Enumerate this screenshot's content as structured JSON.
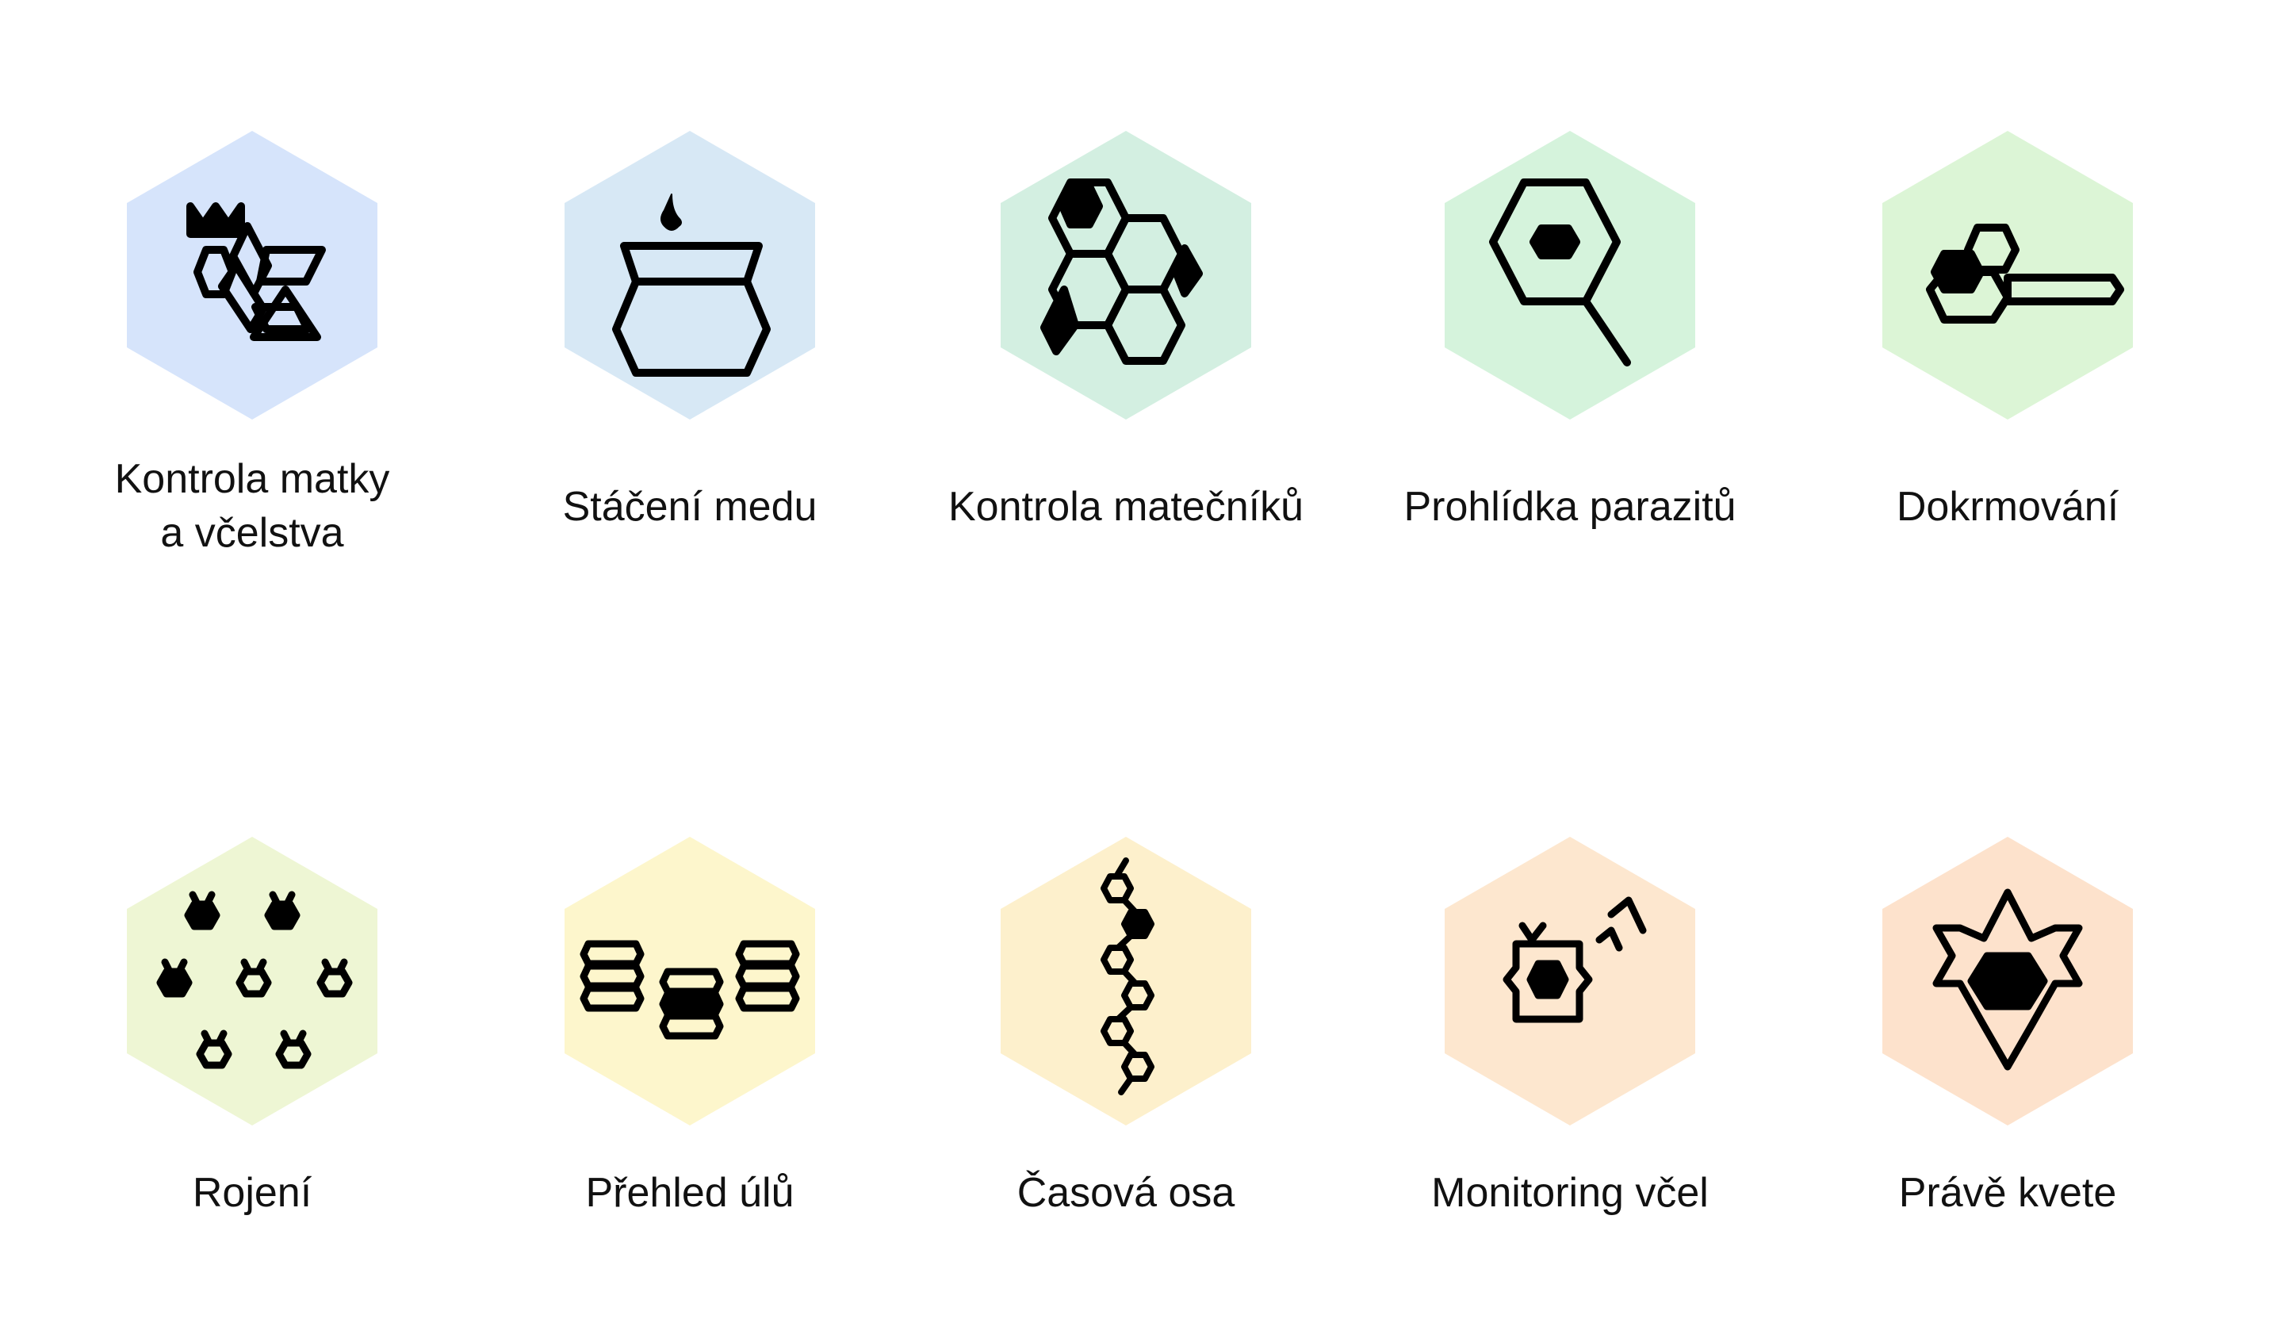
{
  "tiles": [
    {
      "id": "queen",
      "label_lines": [
        "Kontrola matky",
        "a včelstva"
      ],
      "color": "#d6e4fb",
      "icon": "queen-bee-icon"
    },
    {
      "id": "honey",
      "label_lines": [
        "Stáčení medu"
      ],
      "color": "#d7e8f5",
      "icon": "honey-jar-icon"
    },
    {
      "id": "cells",
      "label_lines": [
        "Kontrola matečníků"
      ],
      "color": "#d3efe1",
      "icon": "queen-cells-icon"
    },
    {
      "id": "parasites",
      "label_lines": [
        "Prohlídka parazitů"
      ],
      "color": "#d5f3dc",
      "icon": "magnifier-icon"
    },
    {
      "id": "feeding",
      "label_lines": [
        "Dokrmování"
      ],
      "color": "#dcf5d6",
      "icon": "feeder-icon"
    },
    {
      "id": "swarming",
      "label_lines": [
        "Rojení"
      ],
      "color": "#eef6d4",
      "icon": "swarm-icon"
    },
    {
      "id": "hives",
      "label_lines": [
        "Přehled úlů"
      ],
      "color": "#fdf6cc",
      "icon": "hives-overview-icon"
    },
    {
      "id": "timeline",
      "label_lines": [
        "Časová osa"
      ],
      "color": "#fdf0cc",
      "icon": "timeline-icon"
    },
    {
      "id": "monitoring",
      "label_lines": [
        "Monitoring včel"
      ],
      "color": "#fde7cf",
      "icon": "monitoring-icon"
    },
    {
      "id": "bloom",
      "label_lines": [
        "Právě kvete"
      ],
      "color": "#fde2cc",
      "icon": "flower-icon"
    }
  ]
}
